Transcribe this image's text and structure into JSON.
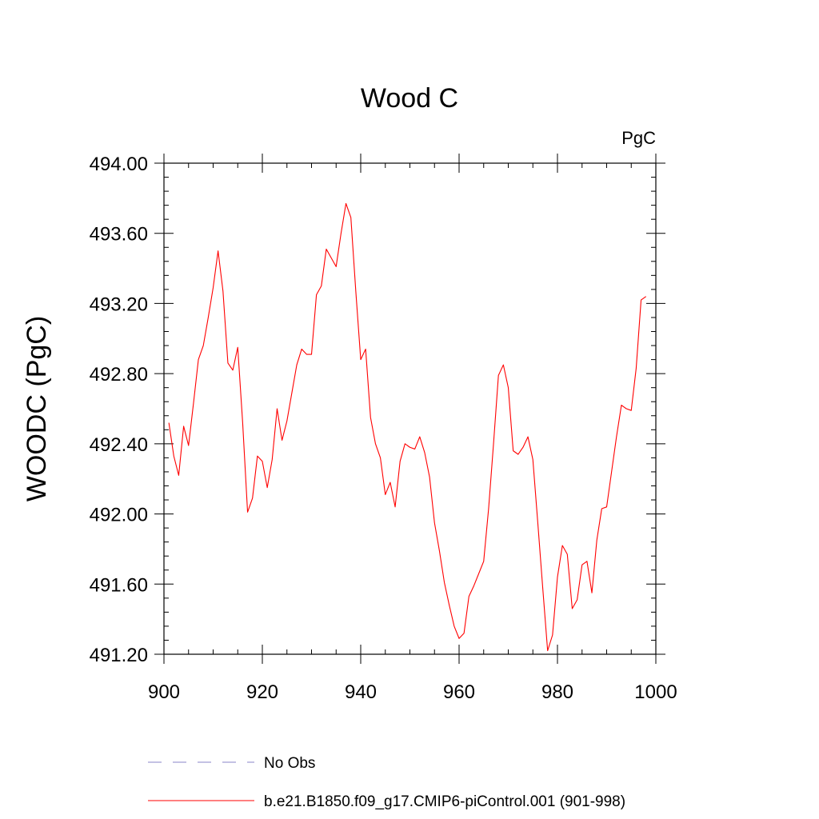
{
  "chart_data": {
    "type": "line",
    "title": "Wood C",
    "units_label": "PgC",
    "ylabel": "WOODC  (PgC)",
    "xlabel": "",
    "xlim": [
      900,
      1000
    ],
    "ylim": [
      491.2,
      494.0
    ],
    "x_ticks": [
      900,
      920,
      940,
      960,
      980,
      1000
    ],
    "x_tick_labels": [
      "900",
      "920",
      "940",
      "960",
      "980",
      "1000"
    ],
    "y_ticks": [
      491.2,
      491.6,
      492.0,
      492.4,
      492.8,
      493.2,
      493.6,
      494.0
    ],
    "y_tick_labels": [
      "491.20",
      "491.60",
      "492.00",
      "492.40",
      "492.80",
      "493.20",
      "493.60",
      "494.00"
    ],
    "grid": false,
    "legend_position": "bottom",
    "legend": [
      {
        "label": "No Obs",
        "style": "dashed",
        "color": "#8a86c8"
      },
      {
        "label": "b.e21.B1850.f09_g17.CMIP6-piControl.001 (901-998)",
        "style": "solid",
        "color": "#ff0000"
      }
    ],
    "series": [
      {
        "name": "b.e21.B1850.f09_g17.CMIP6-piControl.001 (901-998)",
        "color": "#ff0000",
        "x": [
          901,
          902,
          903,
          904,
          905,
          906,
          907,
          908,
          909,
          910,
          911,
          912,
          913,
          914,
          915,
          916,
          917,
          918,
          919,
          920,
          921,
          922,
          923,
          924,
          925,
          926,
          927,
          928,
          929,
          930,
          931,
          932,
          933,
          934,
          935,
          936,
          937,
          938,
          939,
          940,
          941,
          942,
          943,
          944,
          945,
          946,
          947,
          948,
          949,
          950,
          951,
          952,
          953,
          954,
          955,
          956,
          957,
          958,
          959,
          960,
          961,
          962,
          963,
          964,
          965,
          966,
          967,
          968,
          969,
          970,
          971,
          972,
          973,
          974,
          975,
          976,
          977,
          978,
          979,
          980,
          981,
          982,
          983,
          984,
          985,
          986,
          987,
          988,
          989,
          990,
          991,
          992,
          993,
          994,
          995,
          996,
          997,
          998
        ],
        "values": [
          492.52,
          492.33,
          492.22,
          492.5,
          492.39,
          492.63,
          492.88,
          492.96,
          493.12,
          493.29,
          493.5,
          493.27,
          492.86,
          492.82,
          492.95,
          492.52,
          492.01,
          492.09,
          492.33,
          492.3,
          492.15,
          492.31,
          492.6,
          492.42,
          492.53,
          492.69,
          492.85,
          492.94,
          492.91,
          492.91,
          493.25,
          493.3,
          493.51,
          493.46,
          493.41,
          493.6,
          493.77,
          493.69,
          493.27,
          492.88,
          492.94,
          492.55,
          492.4,
          492.32,
          492.11,
          492.18,
          492.04,
          492.3,
          492.4,
          492.38,
          492.37,
          492.44,
          492.35,
          492.21,
          491.95,
          491.79,
          491.61,
          491.48,
          491.36,
          491.29,
          491.32,
          491.53,
          491.59,
          491.66,
          491.73,
          492.03,
          492.4,
          492.79,
          492.85,
          492.72,
          492.36,
          492.34,
          492.38,
          492.44,
          492.31,
          491.95,
          491.58,
          491.22,
          491.31,
          491.64,
          491.82,
          491.77,
          491.46,
          491.51,
          491.71,
          491.73,
          491.55,
          491.85,
          492.03,
          492.04,
          492.24,
          492.44,
          492.62,
          492.6,
          492.59,
          492.83,
          493.22,
          493.24
        ]
      }
    ]
  }
}
